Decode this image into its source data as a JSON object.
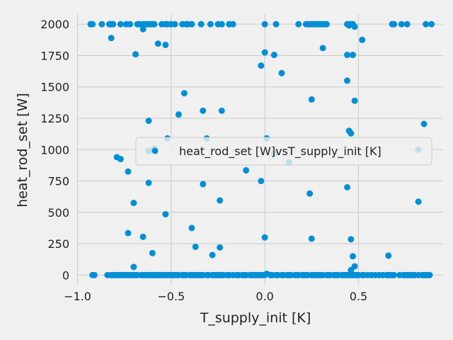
{
  "chart_data": {
    "type": "scatter",
    "title": "",
    "xlabel": "T_supply_init [K]",
    "ylabel": "heat_rod_set [W]",
    "xlim": [
      -1.0,
      0.95
    ],
    "ylim": [
      -80,
      2080
    ],
    "xticks": [
      -1.0,
      -0.5,
      0.0,
      0.5
    ],
    "xtick_labels": [
      "−1.0",
      "−0.5",
      "0.0",
      "0.5"
    ],
    "yticks": [
      0,
      250,
      500,
      750,
      1000,
      1250,
      1500,
      1750,
      2000
    ],
    "yticks_labels": [
      "0",
      "250",
      "500",
      "750",
      "1000",
      "1250",
      "1500",
      "1750",
      "2000"
    ],
    "grid": true,
    "legend_position": "center-right",
    "marker_color": "#008fd5",
    "series": [
      {
        "name": "heat_rod_set [W]vsT_supply_init [K]",
        "points": [
          [
            -0.93,
            2000
          ],
          [
            -0.92,
            2000
          ],
          [
            -0.87,
            2000
          ],
          [
            -0.83,
            2000
          ],
          [
            -0.82,
            2000
          ],
          [
            -0.81,
            2000
          ],
          [
            -0.77,
            2000
          ],
          [
            -0.74,
            2000
          ],
          [
            -0.72,
            2000
          ],
          [
            -0.68,
            2000
          ],
          [
            -0.67,
            2000
          ],
          [
            -0.65,
            2000
          ],
          [
            -0.64,
            2000
          ],
          [
            -0.63,
            2000
          ],
          [
            -0.62,
            2000
          ],
          [
            -0.61,
            2000
          ],
          [
            -0.6,
            2000
          ],
          [
            -0.59,
            2000
          ],
          [
            -0.55,
            2000
          ],
          [
            -0.53,
            2000
          ],
          [
            -0.52,
            2000
          ],
          [
            -0.5,
            2000
          ],
          [
            -0.48,
            2000
          ],
          [
            -0.44,
            2000
          ],
          [
            -0.42,
            2000
          ],
          [
            -0.41,
            2000
          ],
          [
            -0.39,
            2000
          ],
          [
            -0.34,
            2000
          ],
          [
            -0.29,
            2000
          ],
          [
            -0.25,
            2000
          ],
          [
            -0.23,
            2000
          ],
          [
            -0.19,
            2000
          ],
          [
            -0.17,
            2000
          ],
          [
            0.0,
            2000
          ],
          [
            0.06,
            2000
          ],
          [
            0.18,
            2000
          ],
          [
            0.22,
            2000
          ],
          [
            0.23,
            2000
          ],
          [
            0.24,
            2000
          ],
          [
            0.25,
            2000
          ],
          [
            0.26,
            2000
          ],
          [
            0.27,
            2000
          ],
          [
            0.28,
            2000
          ],
          [
            0.29,
            2000
          ],
          [
            0.3,
            2000
          ],
          [
            0.31,
            2000
          ],
          [
            0.32,
            2000
          ],
          [
            0.33,
            2000
          ],
          [
            0.44,
            2000
          ],
          [
            0.45,
            2000
          ],
          [
            0.46,
            2000
          ],
          [
            0.47,
            2000
          ],
          [
            0.48,
            1980
          ],
          [
            0.45,
            1990
          ],
          [
            0.68,
            2000
          ],
          [
            0.69,
            2000
          ],
          [
            0.73,
            2000
          ],
          [
            0.76,
            2000
          ],
          [
            0.86,
            2000
          ],
          [
            0.89,
            2000
          ],
          [
            -0.82,
            1890
          ],
          [
            -0.65,
            1960
          ],
          [
            -0.57,
            1845
          ],
          [
            -0.53,
            1835
          ],
          [
            -0.69,
            1760
          ],
          [
            0.31,
            1810
          ],
          [
            0.52,
            1875
          ],
          [
            -0.02,
            1670
          ],
          [
            0.0,
            1775
          ],
          [
            0.05,
            1755
          ],
          [
            0.09,
            1610
          ],
          [
            0.44,
            1755
          ],
          [
            0.47,
            1755
          ],
          [
            0.44,
            1550
          ],
          [
            -0.43,
            1450
          ],
          [
            0.25,
            1400
          ],
          [
            0.48,
            1390
          ],
          [
            -0.33,
            1310
          ],
          [
            -0.23,
            1310
          ],
          [
            -0.46,
            1280
          ],
          [
            -0.62,
            1230
          ],
          [
            0.85,
            1205
          ],
          [
            0.45,
            1150
          ],
          [
            0.46,
            1130
          ],
          [
            -0.52,
            1090
          ],
          [
            -0.31,
            1090
          ],
          [
            0.01,
            1090
          ],
          [
            -0.59,
            1010
          ],
          [
            -0.62,
            990
          ],
          [
            0.05,
            970
          ],
          [
            0.13,
            900
          ],
          [
            0.82,
            1000
          ],
          [
            -0.79,
            940
          ],
          [
            -0.77,
            925
          ],
          [
            -0.73,
            825
          ],
          [
            -0.1,
            835
          ],
          [
            -0.02,
            750
          ],
          [
            -0.62,
            735
          ],
          [
            -0.33,
            725
          ],
          [
            0.24,
            650
          ],
          [
            0.44,
            700
          ],
          [
            -0.7,
            575
          ],
          [
            -0.24,
            595
          ],
          [
            0.82,
            585
          ],
          [
            -0.53,
            485
          ],
          [
            -0.39,
            375
          ],
          [
            -0.73,
            335
          ],
          [
            -0.65,
            305
          ],
          [
            0.0,
            300
          ],
          [
            0.25,
            290
          ],
          [
            0.46,
            285
          ],
          [
            -0.37,
            225
          ],
          [
            -0.24,
            220
          ],
          [
            -0.6,
            175
          ],
          [
            -0.28,
            160
          ],
          [
            0.47,
            150
          ],
          [
            0.66,
            155
          ],
          [
            -0.7,
            65
          ],
          [
            0.48,
            70
          ],
          [
            0.46,
            40
          ],
          [
            -0.92,
            0
          ],
          [
            -0.91,
            0
          ],
          [
            -0.84,
            0
          ],
          [
            -0.82,
            0
          ],
          [
            -0.81,
            0
          ],
          [
            -0.8,
            0
          ],
          [
            -0.79,
            0
          ],
          [
            -0.78,
            0
          ],
          [
            -0.77,
            0
          ],
          [
            -0.76,
            0
          ],
          [
            -0.75,
            0
          ],
          [
            -0.74,
            0
          ],
          [
            -0.73,
            0
          ],
          [
            -0.72,
            0
          ],
          [
            -0.71,
            0
          ],
          [
            -0.7,
            0
          ],
          [
            -0.69,
            0
          ],
          [
            -0.68,
            0
          ],
          [
            -0.66,
            0
          ],
          [
            -0.65,
            0
          ],
          [
            -0.64,
            0
          ],
          [
            -0.63,
            0
          ],
          [
            -0.62,
            0
          ],
          [
            -0.61,
            0
          ],
          [
            -0.6,
            0
          ],
          [
            -0.59,
            0
          ],
          [
            -0.58,
            0
          ],
          [
            -0.57,
            0
          ],
          [
            -0.56,
            0
          ],
          [
            -0.55,
            0
          ],
          [
            -0.54,
            0
          ],
          [
            -0.53,
            0
          ],
          [
            -0.52,
            0
          ],
          [
            -0.51,
            0
          ],
          [
            -0.5,
            0
          ],
          [
            -0.49,
            0
          ],
          [
            -0.48,
            0
          ],
          [
            -0.47,
            0
          ],
          [
            -0.46,
            0
          ],
          [
            -0.44,
            0
          ],
          [
            -0.43,
            0
          ],
          [
            -0.42,
            0
          ],
          [
            -0.4,
            0
          ],
          [
            -0.39,
            0
          ],
          [
            -0.38,
            0
          ],
          [
            -0.37,
            0
          ],
          [
            -0.36,
            0
          ],
          [
            -0.35,
            0
          ],
          [
            -0.34,
            0
          ],
          [
            -0.33,
            0
          ],
          [
            -0.31,
            0
          ],
          [
            -0.3,
            0
          ],
          [
            -0.28,
            0
          ],
          [
            -0.27,
            0
          ],
          [
            -0.26,
            0
          ],
          [
            -0.25,
            0
          ],
          [
            -0.24,
            0
          ],
          [
            -0.23,
            0
          ],
          [
            -0.22,
            0
          ],
          [
            -0.2,
            0
          ],
          [
            -0.19,
            0
          ],
          [
            -0.17,
            0
          ],
          [
            -0.15,
            0
          ],
          [
            -0.14,
            0
          ],
          [
            -0.12,
            0
          ],
          [
            -0.11,
            0
          ],
          [
            -0.1,
            0
          ],
          [
            -0.08,
            0
          ],
          [
            -0.07,
            0
          ],
          [
            -0.06,
            0
          ],
          [
            -0.05,
            0
          ],
          [
            -0.04,
            0
          ],
          [
            -0.03,
            0
          ],
          [
            -0.02,
            0
          ],
          [
            -0.01,
            0
          ],
          [
            0.0,
            0
          ],
          [
            0.01,
            10
          ],
          [
            0.03,
            0
          ],
          [
            0.04,
            0
          ],
          [
            0.06,
            0
          ],
          [
            0.07,
            0
          ],
          [
            0.09,
            0
          ],
          [
            0.1,
            0
          ],
          [
            0.12,
            0
          ],
          [
            0.13,
            0
          ],
          [
            0.14,
            0
          ],
          [
            0.16,
            0
          ],
          [
            0.17,
            0
          ],
          [
            0.18,
            0
          ],
          [
            0.2,
            0
          ],
          [
            0.21,
            0
          ],
          [
            0.22,
            0
          ],
          [
            0.23,
            0
          ],
          [
            0.25,
            0
          ],
          [
            0.26,
            0
          ],
          [
            0.27,
            0
          ],
          [
            0.28,
            0
          ],
          [
            0.29,
            0
          ],
          [
            0.3,
            0
          ],
          [
            0.31,
            0
          ],
          [
            0.33,
            0
          ],
          [
            0.34,
            0
          ],
          [
            0.35,
            0
          ],
          [
            0.37,
            0
          ],
          [
            0.38,
            0
          ],
          [
            0.39,
            0
          ],
          [
            0.41,
            0
          ],
          [
            0.42,
            0
          ],
          [
            0.43,
            0
          ],
          [
            0.44,
            0
          ],
          [
            0.45,
            0
          ],
          [
            0.46,
            0
          ],
          [
            0.47,
            0
          ],
          [
            0.48,
            0
          ],
          [
            0.49,
            0
          ],
          [
            0.5,
            0
          ],
          [
            0.52,
            0
          ],
          [
            0.53,
            0
          ],
          [
            0.55,
            0
          ],
          [
            0.57,
            0
          ],
          [
            0.59,
            0
          ],
          [
            0.61,
            0
          ],
          [
            0.63,
            0
          ],
          [
            0.65,
            0
          ],
          [
            0.66,
            0
          ],
          [
            0.67,
            0
          ],
          [
            0.68,
            0
          ],
          [
            0.69,
            0
          ],
          [
            0.72,
            0
          ],
          [
            0.74,
            0
          ],
          [
            0.75,
            0
          ],
          [
            0.76,
            0
          ],
          [
            0.77,
            0
          ],
          [
            0.78,
            0
          ],
          [
            0.79,
            0
          ],
          [
            0.8,
            0
          ],
          [
            0.82,
            0
          ],
          [
            0.84,
            0
          ],
          [
            0.85,
            0
          ],
          [
            0.86,
            0
          ],
          [
            0.87,
            0
          ],
          [
            0.88,
            0
          ]
        ]
      }
    ]
  }
}
